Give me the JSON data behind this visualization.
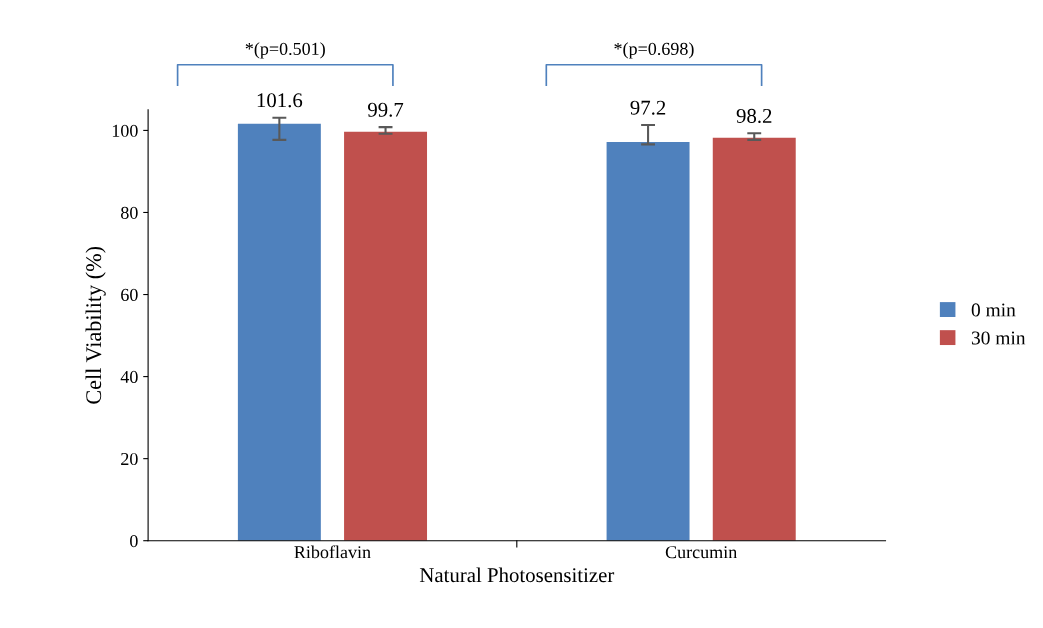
{
  "chart_data": {
    "type": "bar",
    "xlabel": "Natural Photosensitizer",
    "ylabel": "Cell Viability (%)",
    "categories": [
      "Riboflavin",
      "Curcumin"
    ],
    "series": [
      {
        "name": "0 min",
        "color": "#4f81bd",
        "values": [
          101.6,
          97.2
        ],
        "errors": [
          [
            97.7,
            103.1
          ],
          [
            96.6,
            101.3
          ]
        ]
      },
      {
        "name": "30 min",
        "color": "#c0504d",
        "values": [
          99.7,
          98.2
        ],
        "errors": [
          [
            99.2,
            100.8
          ],
          [
            97.7,
            99.3
          ]
        ]
      }
    ],
    "ylim": [
      0,
      105
    ],
    "yticks": [
      0,
      20,
      40,
      60,
      80,
      100
    ],
    "data_labels": true,
    "legend": "right",
    "grid": false,
    "annotations": [
      "*(p=0.501)",
      "*(p=0.698)"
    ]
  }
}
